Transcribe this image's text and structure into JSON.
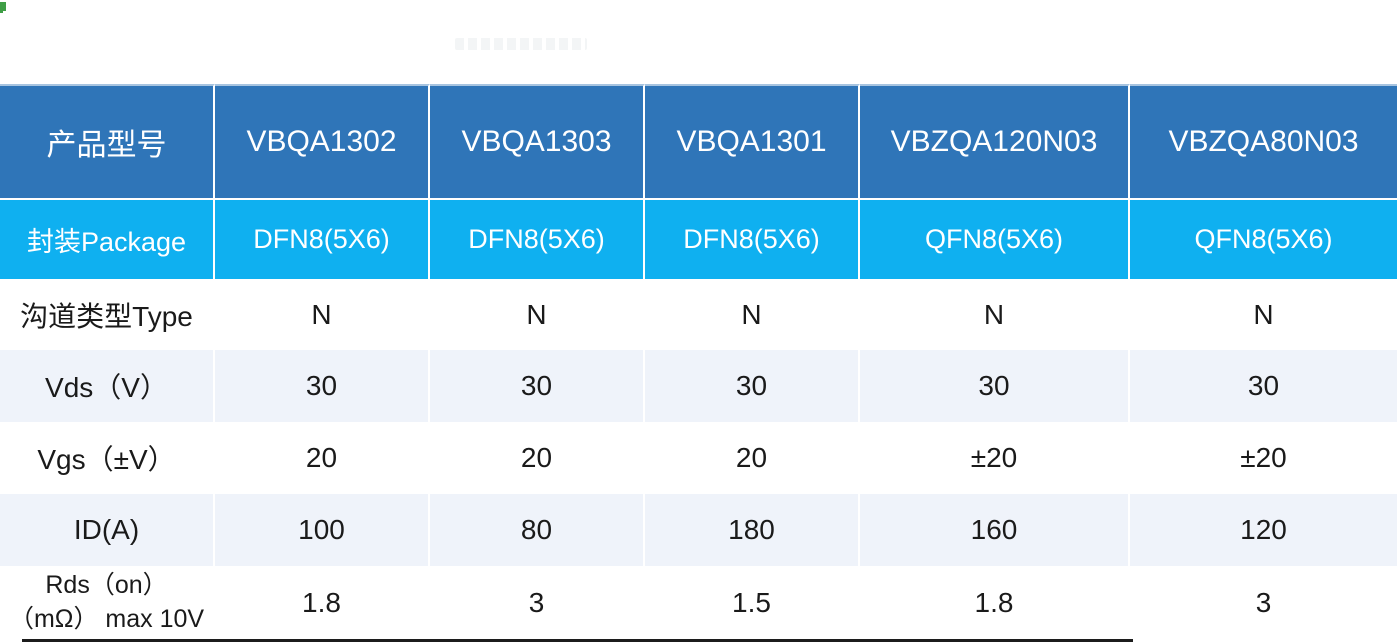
{
  "decorations": {
    "corner_mark": "green-corner-artifact",
    "watermark": "faint-unreadable-smudge"
  },
  "colors": {
    "header_bg": "#2f75b8",
    "package_row_bg": "#0fb0f0",
    "alt_row_bg": "#eff3fa",
    "row_bg": "#ffffff",
    "header_text": "#ffffff",
    "body_text": "#1a1a1a",
    "corner_mark": "#3f9e46",
    "bottom_line": "#1c1c1c"
  },
  "table": {
    "header": {
      "label": "产品型号",
      "values": [
        "VBQA1302",
        "VBQA1303",
        "VBQA1301",
        "VBZQA120N03",
        "VBZQA80N03"
      ]
    },
    "rows": [
      {
        "label": "封装Package",
        "values": [
          "DFN8(5X6)",
          "DFN8(5X6)",
          "DFN8(5X6)",
          "QFN8(5X6)",
          "QFN8(5X6)"
        ]
      },
      {
        "label": "沟道类型Type",
        "values": [
          "N",
          "N",
          "N",
          "N",
          "N"
        ]
      },
      {
        "label": "Vds（V）",
        "values": [
          "30",
          "30",
          "30",
          "30",
          "30"
        ]
      },
      {
        "label": "Vgs（±V）",
        "values": [
          "20",
          "20",
          "20",
          "±20",
          "±20"
        ]
      },
      {
        "label": "ID(A)",
        "values": [
          "100",
          "80",
          "180",
          "160",
          "120"
        ]
      },
      {
        "label": "Rds（on） （mΩ） max 10V",
        "values": [
          "1.8",
          "3",
          "1.5",
          "1.8",
          "3"
        ]
      }
    ]
  }
}
